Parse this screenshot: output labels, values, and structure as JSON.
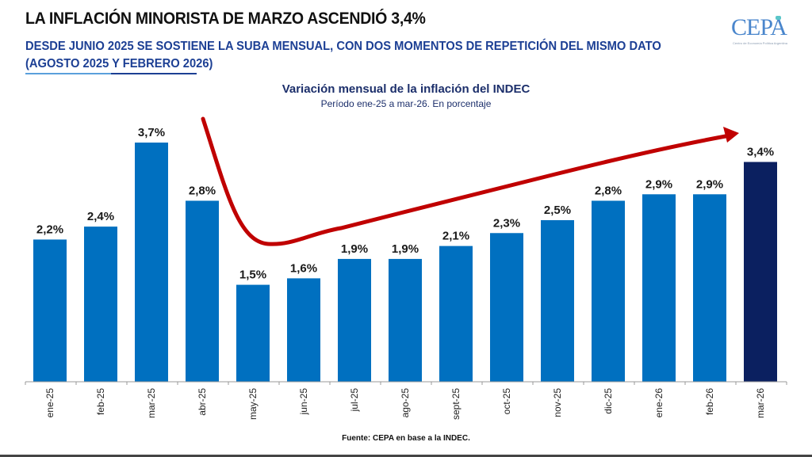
{
  "header": {
    "title": "LA INFLACIÓN MINORISTA DE MARZO ASCENDIÓ 3,4%",
    "subtitle": "DESDE JUNIO 2025 SE SOSTIENE LA SUBA MENSUAL, CON DOS MOMENTOS DE REPETICIÓN DEL MISMO DATO\n(AGOSTO 2025 Y FEBRERO 2026)",
    "logo_text": "CEPA",
    "logo_caption": "Centro de Economía Política Argentina"
  },
  "colors": {
    "bar": "#0070c0",
    "highlight_bar": "#0b2060",
    "arrow": "#c00000",
    "subtitle": "#1c3f94"
  },
  "footer": {
    "source": "Fuente: CEPA en base a la INDEC."
  },
  "chart_data": {
    "type": "bar",
    "title": "Variación mensual de la inflación del INDEC",
    "subtitle": "Período ene-25 a mar-26. En porcentaje",
    "xlabel": "",
    "ylabel": "",
    "ylim": [
      0,
      3.7
    ],
    "grid": false,
    "categories": [
      "ene-25",
      "feb-25",
      "mar-25",
      "abr-25",
      "may-25",
      "jun-25",
      "jul-25",
      "ago-25",
      "sept-25",
      "oct-25",
      "nov-25",
      "dic-25",
      "ene-26",
      "feb-26",
      "mar-26"
    ],
    "values": [
      2.2,
      2.4,
      3.7,
      2.8,
      1.5,
      1.6,
      1.9,
      1.9,
      2.1,
      2.3,
      2.5,
      2.8,
      2.9,
      2.9,
      3.4
    ],
    "labels": [
      "2,2%",
      "2,4%",
      "3,7%",
      "2,8%",
      "1,5%",
      "1,6%",
      "1,9%",
      "1,9%",
      "2,1%",
      "2,3%",
      "2,5%",
      "2,8%",
      "2,9%",
      "2,9%",
      "3,4%"
    ],
    "highlight_index": 14,
    "annotations": [
      {
        "type": "trend-arrow",
        "description": "Red curved arrow falling from abr-25 to a low at may-25 then rising steadily to mar-26"
      }
    ]
  }
}
